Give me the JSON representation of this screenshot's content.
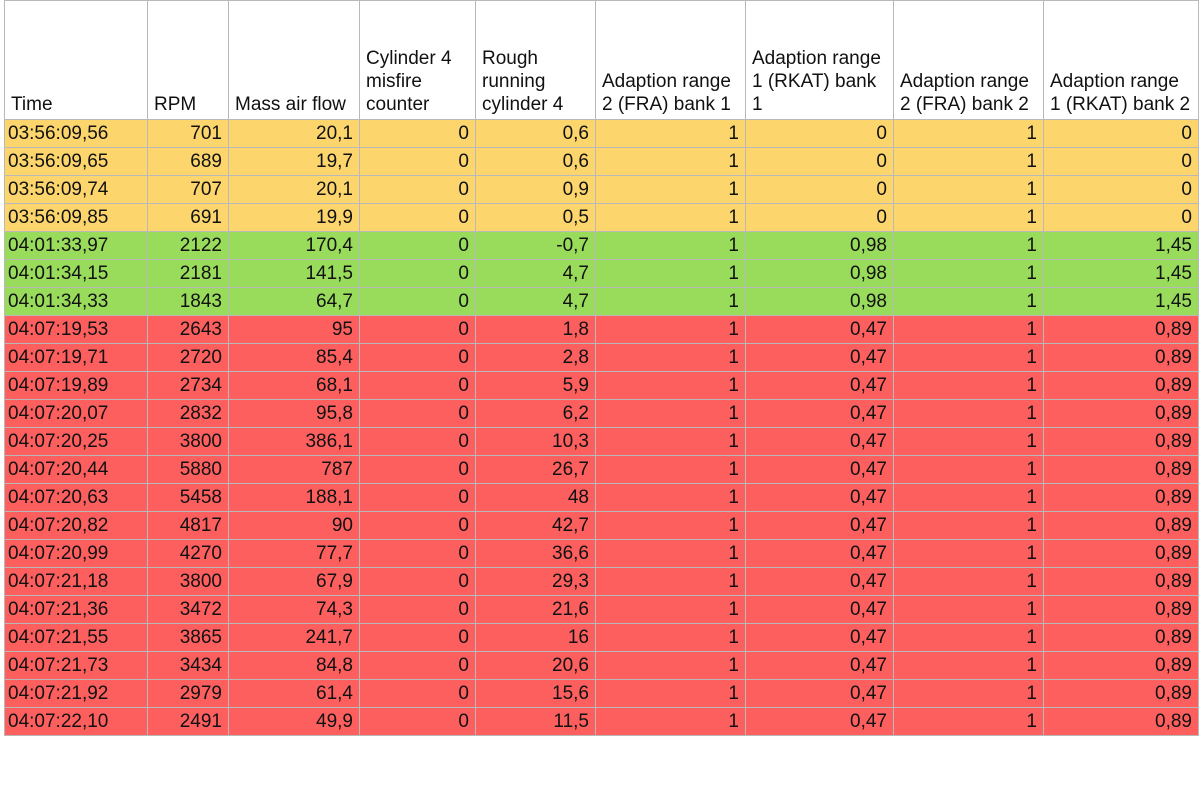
{
  "chart_data": {
    "type": "table",
    "colors": {
      "yellow": "#fcd66c",
      "green": "#99db5b",
      "red": "#fd5f5f"
    },
    "columns": [
      "Time",
      "RPM",
      "Mass air flow",
      "Cylinder 4 misfire counter",
      "Rough running cylinder 4",
      "Adaption range 2 (FRA) bank 1",
      "Adaption range 1 (RKAT) bank 1",
      "Adaption range 2 (FRA) bank 2",
      "Adaption range 1 (RKAT) bank 2"
    ],
    "rows": [
      {
        "color": "yellow",
        "cells": [
          "03:56:09,56",
          "701",
          "20,1",
          "0",
          "0,6",
          "1",
          "0",
          "1",
          "0"
        ]
      },
      {
        "color": "yellow",
        "cells": [
          "03:56:09,65",
          "689",
          "19,7",
          "0",
          "0,6",
          "1",
          "0",
          "1",
          "0"
        ]
      },
      {
        "color": "yellow",
        "cells": [
          "03:56:09,74",
          "707",
          "20,1",
          "0",
          "0,9",
          "1",
          "0",
          "1",
          "0"
        ]
      },
      {
        "color": "yellow",
        "cells": [
          "03:56:09,85",
          "691",
          "19,9",
          "0",
          "0,5",
          "1",
          "0",
          "1",
          "0"
        ]
      },
      {
        "color": "green",
        "cells": [
          "04:01:33,97",
          "2122",
          "170,4",
          "0",
          "-0,7",
          "1",
          "0,98",
          "1",
          "1,45"
        ]
      },
      {
        "color": "green",
        "cells": [
          "04:01:34,15",
          "2181",
          "141,5",
          "0",
          "4,7",
          "1",
          "0,98",
          "1",
          "1,45"
        ]
      },
      {
        "color": "green",
        "cells": [
          "04:01:34,33",
          "1843",
          "64,7",
          "0",
          "4,7",
          "1",
          "0,98",
          "1",
          "1,45"
        ]
      },
      {
        "color": "red",
        "cells": [
          "04:07:19,53",
          "2643",
          "95",
          "0",
          "1,8",
          "1",
          "0,47",
          "1",
          "0,89"
        ]
      },
      {
        "color": "red",
        "cells": [
          "04:07:19,71",
          "2720",
          "85,4",
          "0",
          "2,8",
          "1",
          "0,47",
          "1",
          "0,89"
        ]
      },
      {
        "color": "red",
        "cells": [
          "04:07:19,89",
          "2734",
          "68,1",
          "0",
          "5,9",
          "1",
          "0,47",
          "1",
          "0,89"
        ]
      },
      {
        "color": "red",
        "cells": [
          "04:07:20,07",
          "2832",
          "95,8",
          "0",
          "6,2",
          "1",
          "0,47",
          "1",
          "0,89"
        ]
      },
      {
        "color": "red",
        "cells": [
          "04:07:20,25",
          "3800",
          "386,1",
          "0",
          "10,3",
          "1",
          "0,47",
          "1",
          "0,89"
        ]
      },
      {
        "color": "red",
        "cells": [
          "04:07:20,44",
          "5880",
          "787",
          "0",
          "26,7",
          "1",
          "0,47",
          "1",
          "0,89"
        ]
      },
      {
        "color": "red",
        "cells": [
          "04:07:20,63",
          "5458",
          "188,1",
          "0",
          "48",
          "1",
          "0,47",
          "1",
          "0,89"
        ]
      },
      {
        "color": "red",
        "cells": [
          "04:07:20,82",
          "4817",
          "90",
          "0",
          "42,7",
          "1",
          "0,47",
          "1",
          "0,89"
        ]
      },
      {
        "color": "red",
        "cells": [
          "04:07:20,99",
          "4270",
          "77,7",
          "0",
          "36,6",
          "1",
          "0,47",
          "1",
          "0,89"
        ]
      },
      {
        "color": "red",
        "cells": [
          "04:07:21,18",
          "3800",
          "67,9",
          "0",
          "29,3",
          "1",
          "0,47",
          "1",
          "0,89"
        ]
      },
      {
        "color": "red",
        "cells": [
          "04:07:21,36",
          "3472",
          "74,3",
          "0",
          "21,6",
          "1",
          "0,47",
          "1",
          "0,89"
        ]
      },
      {
        "color": "red",
        "cells": [
          "04:07:21,55",
          "3865",
          "241,7",
          "0",
          "16",
          "1",
          "0,47",
          "1",
          "0,89"
        ]
      },
      {
        "color": "red",
        "cells": [
          "04:07:21,73",
          "3434",
          "84,8",
          "0",
          "20,6",
          "1",
          "0,47",
          "1",
          "0,89"
        ]
      },
      {
        "color": "red",
        "cells": [
          "04:07:21,92",
          "2979",
          "61,4",
          "0",
          "15,6",
          "1",
          "0,47",
          "1",
          "0,89"
        ]
      },
      {
        "color": "red",
        "cells": [
          "04:07:22,10",
          "2491",
          "49,9",
          "0",
          "11,5",
          "1",
          "0,47",
          "1",
          "0,89"
        ]
      }
    ]
  }
}
